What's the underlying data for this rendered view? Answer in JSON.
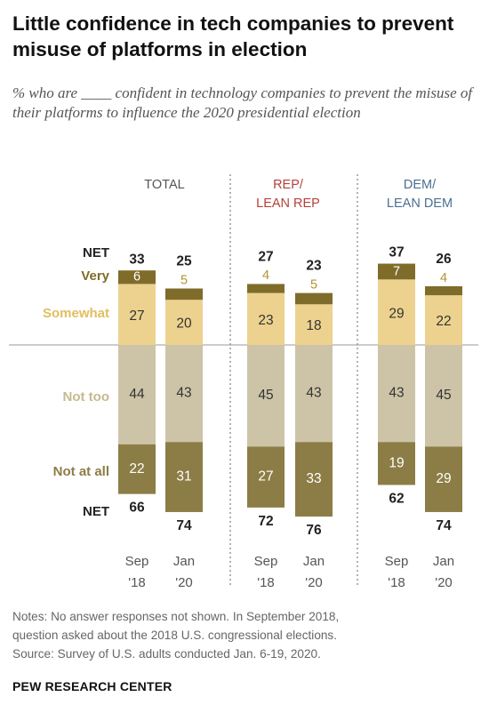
{
  "title": "Little confidence in tech companies to prevent misuse of platforms in election",
  "subtitle": "% who are ____ confident in technology companies to prevent the misuse of their platforms to influence the 2020 presidential election",
  "notes": [
    "Notes: No answer responses not shown. In September 2018,",
    "question asked about the 2018 U.S. congressional elections.",
    "Source: Survey of U.S. adults conducted Jan. 6-19, 2020."
  ],
  "source_brand": "PEW RESEARCH CENTER",
  "colors": {
    "very": "#7f6c2a",
    "somewhat": "#ecd28e",
    "not_too": "#cdc4a8",
    "not_at_all": "#8c7d46",
    "rep_header": "#b5413a",
    "dem_header": "#4a6f92"
  },
  "chart_data": {
    "type": "bar",
    "stacked": "diverging",
    "row_labels": {
      "net_confident": "NET",
      "very": "Very",
      "somewhat": "Somewhat",
      "not_too": "Not too",
      "not_at_all": "Not at all",
      "net_not_confident": "NET"
    },
    "groups": [
      {
        "name": "TOTAL",
        "bars": [
          {
            "period": [
              "Sep",
              "'18"
            ],
            "very": 6,
            "somewhat": 27,
            "net_confident": 33,
            "not_too": 44,
            "not_at_all": 22,
            "net_not_confident": 66
          },
          {
            "period": [
              "Jan",
              "'20"
            ],
            "very": 5,
            "somewhat": 20,
            "net_confident": 25,
            "not_too": 43,
            "not_at_all": 31,
            "net_not_confident": 74
          }
        ]
      },
      {
        "name": "REP/\nLEAN REP",
        "bars": [
          {
            "period": [
              "Sep",
              "'18"
            ],
            "very": 4,
            "somewhat": 23,
            "net_confident": 27,
            "not_too": 45,
            "not_at_all": 27,
            "net_not_confident": 72
          },
          {
            "period": [
              "Jan",
              "'20"
            ],
            "very": 5,
            "somewhat": 18,
            "net_confident": 23,
            "not_too": 43,
            "not_at_all": 33,
            "net_not_confident": 76
          }
        ]
      },
      {
        "name": "DEM/\nLEAN DEM",
        "bars": [
          {
            "period": [
              "Sep",
              "'18"
            ],
            "very": 7,
            "somewhat": 29,
            "net_confident": 37,
            "not_too": 43,
            "not_at_all": 19,
            "net_not_confident": 62
          },
          {
            "period": [
              "Jan",
              "'20"
            ],
            "very": 4,
            "somewhat": 22,
            "net_confident": 26,
            "not_too": 45,
            "not_at_all": 29,
            "net_not_confident": 74
          }
        ]
      }
    ]
  }
}
